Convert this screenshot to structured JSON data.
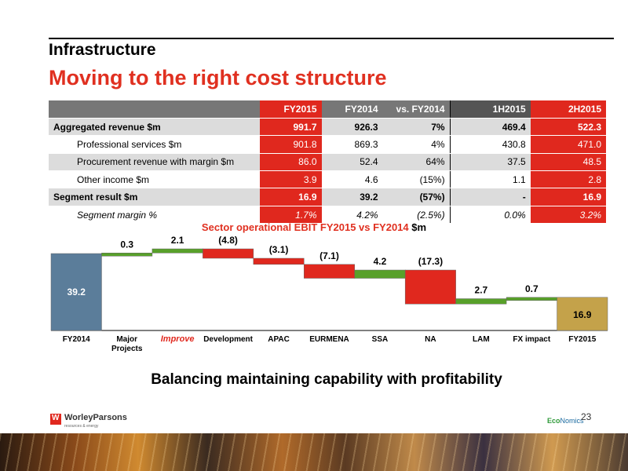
{
  "header": {
    "section": "Infrastructure",
    "title": "Moving to the right cost structure"
  },
  "table": {
    "columns": [
      "",
      "FY2015",
      "FY2014",
      "vs. FY2014",
      "1H2015",
      "2H2015"
    ],
    "rows": [
      {
        "label": "Aggregated revenue $m",
        "values": [
          "991.7",
          "926.3",
          "7%",
          "469.4",
          "522.3"
        ]
      },
      {
        "label": "Professional services $m",
        "values": [
          "901.8",
          "869.3",
          "4%",
          "430.8",
          "471.0"
        ]
      },
      {
        "label": "Procurement revenue with margin $m",
        "values": [
          "86.0",
          "52.4",
          "64%",
          "37.5",
          "48.5"
        ]
      },
      {
        "label": "Other income $m",
        "values": [
          "3.9",
          "4.6",
          "(15%)",
          "1.1",
          "2.8"
        ]
      },
      {
        "label": "Segment result $m",
        "values": [
          "16.9",
          "39.2",
          "(57%)",
          "-",
          "16.9"
        ]
      },
      {
        "label": "Segment margin %",
        "values": [
          "1.7%",
          "4.2%",
          "(2.5%)",
          "0.0%",
          "3.2%"
        ]
      }
    ]
  },
  "colors": {
    "accent_red": "#e0281e",
    "total_blue": "#5b7d9a",
    "total_gold": "#c4a24a",
    "increase_green": "#58a02a",
    "decrease_red": "#e0281e"
  },
  "chart_data": {
    "type": "bar",
    "subtype": "waterfall",
    "title": "Sector operational EBIT FY2015 vs FY2014",
    "title_unit": "$m",
    "categories": [
      "FY2014",
      "Major Projects",
      "Improve",
      "Development",
      "APAC",
      "EURMENA",
      "SSA",
      "NA",
      "LAM",
      "FX impact",
      "FY2015"
    ],
    "values": [
      39.2,
      0.3,
      2.1,
      -4.8,
      -3.1,
      -7.1,
      4.2,
      -17.3,
      2.7,
      0.7,
      16.9
    ],
    "labels": [
      "39.2",
      "0.3",
      "2.1",
      "(4.8)",
      "(3.1)",
      "(7.1)",
      "4.2",
      "(17.3)",
      "2.7",
      "0.7",
      "16.9"
    ],
    "kinds": [
      "total",
      "delta",
      "delta",
      "delta",
      "delta",
      "delta",
      "delta",
      "delta",
      "delta",
      "delta",
      "total"
    ],
    "highlight_category": "Improve"
  },
  "footer": {
    "tagline": "Balancing maintaining capability with profitability",
    "logo_text": "WorleyParsons",
    "logo_sub": "resources & energy",
    "logo_mark": "W",
    "economics_prefix": "Eco",
    "economics_suffix": "Nomics",
    "page_number": "23"
  }
}
